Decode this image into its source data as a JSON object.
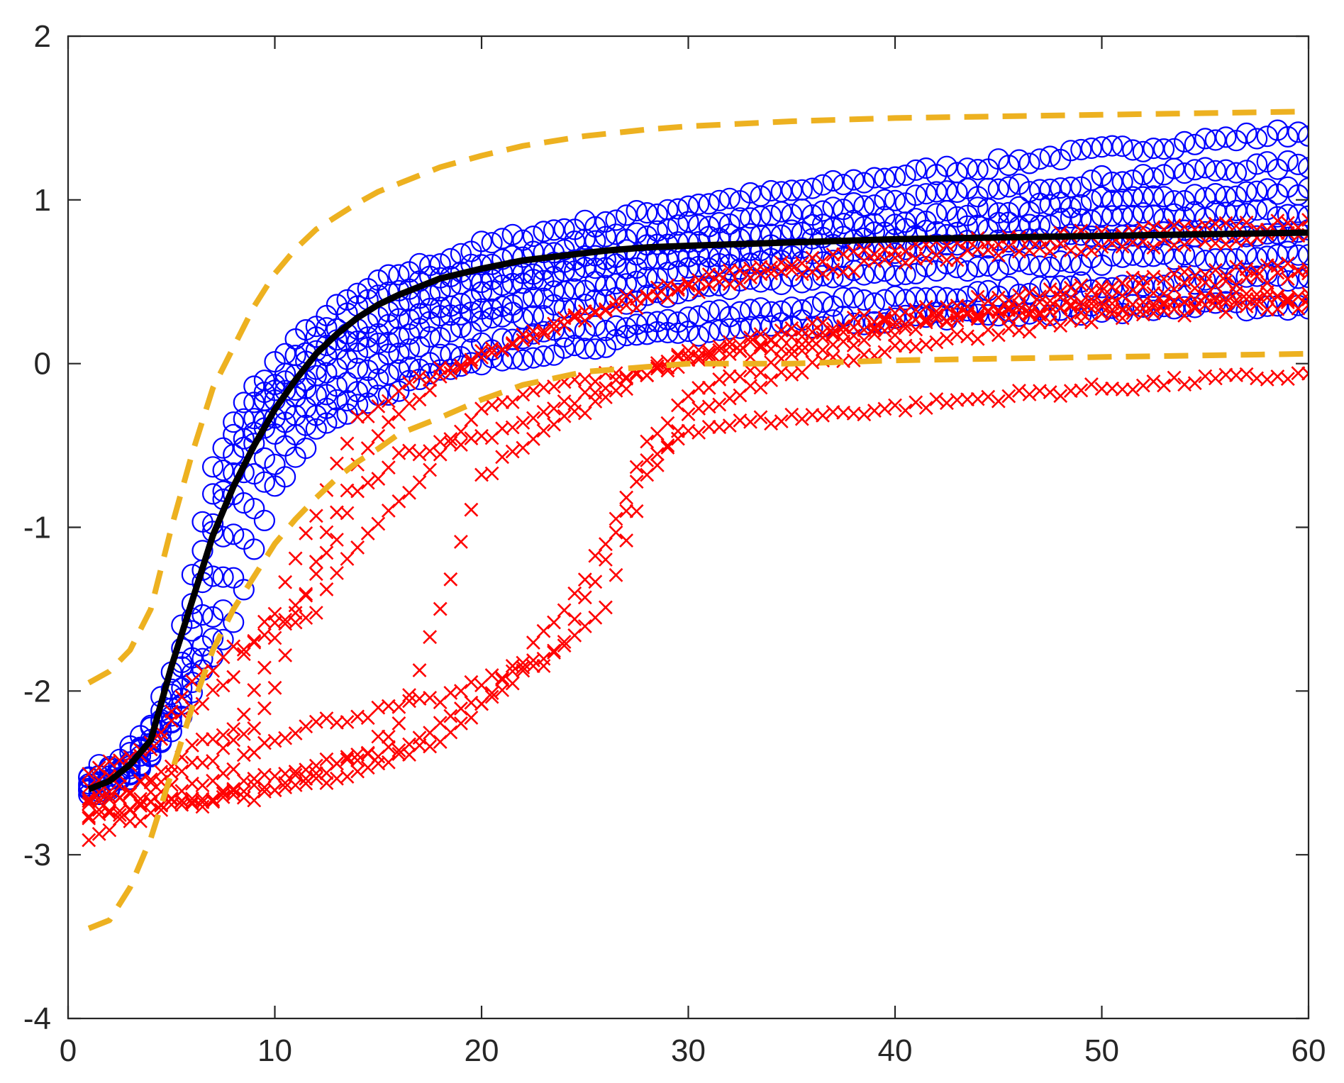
{
  "chart_data": {
    "type": "scatter",
    "title": "",
    "xlabel": "",
    "ylabel": "",
    "xlim": [
      0,
      60
    ],
    "ylim": [
      -4,
      2
    ],
    "xticks": [
      "0",
      "10",
      "20",
      "30",
      "40",
      "50",
      "60"
    ],
    "yticks": [
      "-4",
      "-3",
      "-2",
      "-1",
      "0",
      "1",
      "2"
    ],
    "grid": false,
    "legend": "none",
    "colors": {
      "circles": "#0000ff",
      "crosses": "#ff0000",
      "mean": "#000000",
      "bounds": "#edb120",
      "axes": "#262626"
    },
    "series": [
      {
        "marker": "circle",
        "color": "#0000ff",
        "x": [
          1,
          2,
          3,
          4,
          5,
          6,
          7,
          8,
          9,
          10,
          12,
          14,
          16,
          18,
          20,
          22,
          25,
          28,
          30,
          35,
          40,
          45,
          50,
          55,
          60
        ],
        "trajectories": [
          [
            -2.5,
            -2.45,
            -2.35,
            -2.2,
            -1.9,
            -1.3,
            -0.65,
            -0.35,
            -0.15,
            0.0,
            0.25,
            0.42,
            0.55,
            0.63,
            0.72,
            0.78,
            0.85,
            0.92,
            0.97,
            1.05,
            1.15,
            1.22,
            1.3,
            1.36,
            1.42
          ],
          [
            -2.55,
            -2.5,
            -2.4,
            -2.25,
            -2.0,
            -1.45,
            -0.8,
            -0.45,
            -0.25,
            -0.1,
            0.15,
            0.33,
            0.45,
            0.53,
            0.6,
            0.66,
            0.73,
            0.8,
            0.84,
            0.92,
            1.0,
            1.06,
            1.12,
            1.18,
            1.22
          ],
          [
            -2.55,
            -2.5,
            -2.42,
            -2.3,
            -2.05,
            -1.55,
            -0.95,
            -0.55,
            -0.32,
            -0.18,
            0.05,
            0.22,
            0.35,
            0.43,
            0.5,
            0.56,
            0.63,
            0.7,
            0.74,
            0.81,
            0.88,
            0.94,
            0.99,
            1.03,
            1.06
          ],
          [
            -2.6,
            -2.55,
            -2.45,
            -2.32,
            -2.1,
            -1.65,
            -1.05,
            -0.65,
            -0.4,
            -0.25,
            -0.02,
            0.15,
            0.27,
            0.36,
            0.43,
            0.49,
            0.56,
            0.62,
            0.66,
            0.73,
            0.79,
            0.84,
            0.88,
            0.91,
            0.93
          ],
          [
            -2.6,
            -2.55,
            -2.48,
            -2.35,
            -2.15,
            -1.8,
            -1.3,
            -0.8,
            -0.5,
            -0.32,
            -0.1,
            0.06,
            0.18,
            0.27,
            0.34,
            0.4,
            0.47,
            0.53,
            0.57,
            0.63,
            0.69,
            0.74,
            0.77,
            0.79,
            0.8
          ],
          [
            -2.6,
            -2.58,
            -2.5,
            -2.38,
            -2.18,
            -1.9,
            -1.55,
            -1.05,
            -0.7,
            -0.45,
            -0.2,
            -0.05,
            0.08,
            0.17,
            0.24,
            0.3,
            0.36,
            0.41,
            0.45,
            0.51,
            0.56,
            0.6,
            0.63,
            0.66,
            0.68
          ],
          [
            -2.62,
            -2.58,
            -2.52,
            -2.4,
            -2.2,
            -1.95,
            -1.7,
            -1.3,
            -0.9,
            -0.6,
            -0.32,
            -0.17,
            -0.05,
            0.04,
            0.1,
            0.15,
            0.21,
            0.26,
            0.29,
            0.35,
            0.4,
            0.44,
            0.48,
            0.51,
            0.53
          ],
          [
            -2.62,
            -2.6,
            -2.52,
            -2.42,
            -2.25,
            -2.0,
            -1.8,
            -1.6,
            -1.15,
            -0.75,
            -0.4,
            -0.25,
            -0.14,
            -0.06,
            0.0,
            0.05,
            0.11,
            0.16,
            0.19,
            0.24,
            0.28,
            0.31,
            0.33,
            0.35,
            0.35
          ]
        ]
      },
      {
        "marker": "cross",
        "color": "#ff0000",
        "x": [
          1,
          2,
          3,
          4,
          5,
          6,
          7,
          8,
          9,
          10,
          12,
          14,
          16,
          18,
          20,
          22,
          24,
          26,
          28,
          30,
          35,
          40,
          45,
          50,
          55,
          60
        ],
        "trajectories": [
          [
            -2.5,
            -2.45,
            -2.38,
            -2.3,
            -2.15,
            -1.95,
            -1.85,
            -1.75,
            -1.7,
            -1.6,
            -1.5,
            -1.1,
            -0.85,
            -0.55,
            -0.3,
            -0.2,
            -0.12,
            -0.08,
            -0.05,
            0.0,
            0.12,
            0.25,
            0.3,
            0.35,
            0.38,
            0.4
          ],
          [
            -2.7,
            -2.68,
            -2.65,
            -2.62,
            -2.6,
            -2.58,
            -2.55,
            -2.45,
            -2.35,
            -2.28,
            -2.2,
            -2.15,
            -2.1,
            -2.05,
            -1.95,
            -1.85,
            -1.7,
            -1.2,
            -0.6,
            -0.4,
            -0.33,
            -0.27,
            -0.2,
            -0.15,
            -0.1,
            -0.07
          ],
          [
            -2.65,
            -2.62,
            -2.6,
            -2.55,
            -2.45,
            -2.35,
            -2.3,
            -2.25,
            -2.0,
            -1.7,
            -1.3,
            -0.8,
            -0.55,
            -0.5,
            -0.45,
            -0.35,
            -0.25,
            -0.15,
            -0.05,
            0.05,
            0.15,
            0.25,
            0.3,
            0.35,
            0.4,
            0.42
          ],
          [
            -2.6,
            -2.55,
            -2.45,
            -2.35,
            -2.2,
            -2.1,
            -2.0,
            -1.9,
            -1.7,
            -1.5,
            -0.9,
            -0.35,
            -0.15,
            -0.05,
            0.05,
            0.15,
            0.25,
            0.32,
            0.38,
            0.45,
            0.55,
            0.62,
            0.68,
            0.72,
            0.75,
            0.8
          ],
          [
            -2.75,
            -2.72,
            -2.7,
            -2.68,
            -2.67,
            -2.66,
            -2.65,
            -2.6,
            -2.55,
            -2.5,
            -2.45,
            -2.4,
            -2.35,
            -2.2,
            -2.05,
            -1.9,
            -1.75,
            -1.5,
            -0.7,
            -0.3,
            -0.05,
            0.1,
            0.2,
            0.28,
            0.33,
            0.35
          ],
          [
            -2.7,
            -2.65,
            -2.6,
            -2.55,
            -2.5,
            -2.45,
            -2.4,
            -2.3,
            -2.2,
            -2.0,
            -1.2,
            -0.6,
            -0.3,
            -0.1,
            0.05,
            0.15,
            0.25,
            0.35,
            0.42,
            0.5,
            0.62,
            0.7,
            0.75,
            0.8,
            0.83,
            0.85
          ],
          [
            -2.8,
            -2.75,
            -2.72,
            -2.7,
            -2.68,
            -2.67,
            -2.65,
            -2.62,
            -2.6,
            -2.58,
            -2.5,
            -2.4,
            -2.2,
            -1.5,
            -0.7,
            -0.5,
            -0.35,
            -0.2,
            -0.05,
            0.05,
            0.2,
            0.3,
            0.4,
            0.48,
            0.55,
            0.6
          ],
          [
            -2.9,
            -2.82,
            -2.78,
            -2.75,
            -2.72,
            -2.7,
            -2.68,
            -2.66,
            -2.64,
            -2.6,
            -2.55,
            -2.48,
            -2.4,
            -2.3,
            -2.1,
            -1.8,
            -1.5,
            -1.1,
            -0.5,
            -0.2,
            0.05,
            0.2,
            0.32,
            0.42,
            0.48,
            0.55
          ]
        ]
      },
      {
        "name": "",
        "marker": "line",
        "color": "#000000",
        "x": [
          1,
          2,
          3,
          4,
          5,
          6,
          7,
          8,
          9,
          10,
          11,
          12,
          13,
          14,
          15,
          16,
          17,
          18,
          20,
          22,
          24,
          26,
          28,
          30,
          35,
          40,
          45,
          50,
          55,
          60
        ],
        "y": [
          -2.6,
          -2.55,
          -2.45,
          -2.3,
          -1.85,
          -1.45,
          -1.05,
          -0.75,
          -0.5,
          -0.28,
          -0.1,
          0.06,
          0.18,
          0.28,
          0.36,
          0.42,
          0.47,
          0.52,
          0.58,
          0.63,
          0.66,
          0.69,
          0.71,
          0.72,
          0.74,
          0.76,
          0.77,
          0.78,
          0.79,
          0.8
        ]
      },
      {
        "name": "",
        "marker": "dashed",
        "color": "#edb120",
        "x": [
          1,
          2,
          3,
          4,
          5,
          6,
          7,
          8,
          9,
          10,
          11,
          12,
          13,
          14,
          15,
          16,
          18,
          20,
          22,
          25,
          28,
          30,
          35,
          40,
          45,
          50,
          55,
          60
        ],
        "y": [
          -1.95,
          -1.88,
          -1.75,
          -1.5,
          -1.0,
          -0.55,
          -0.15,
          0.1,
          0.35,
          0.55,
          0.7,
          0.82,
          0.9,
          0.98,
          1.05,
          1.1,
          1.2,
          1.27,
          1.33,
          1.39,
          1.43,
          1.45,
          1.48,
          1.5,
          1.51,
          1.52,
          1.53,
          1.54
        ]
      },
      {
        "name": "",
        "marker": "dashed",
        "color": "#edb120",
        "x": [
          1,
          2,
          3,
          4,
          5,
          6,
          7,
          8,
          9,
          10,
          11,
          12,
          13,
          14,
          15,
          16,
          18,
          20,
          22,
          25,
          28,
          30,
          35,
          40,
          45,
          50,
          55,
          60
        ],
        "y": [
          -3.45,
          -3.4,
          -3.2,
          -2.9,
          -2.5,
          -2.1,
          -1.75,
          -1.5,
          -1.3,
          -1.1,
          -0.95,
          -0.82,
          -0.7,
          -0.6,
          -0.52,
          -0.43,
          -0.33,
          -0.22,
          -0.13,
          -0.05,
          -0.02,
          0.0,
          0.0,
          0.02,
          0.03,
          0.04,
          0.05,
          0.06
        ]
      }
    ]
  }
}
